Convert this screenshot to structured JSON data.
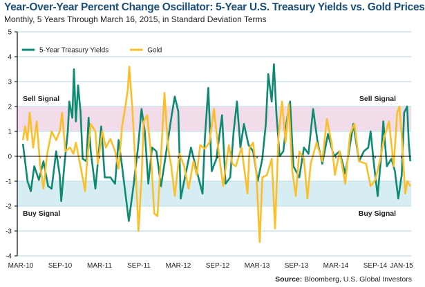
{
  "chart_data": {
    "type": "line",
    "title": "Year-Over-Year Percent Change Oscillator: 5-Year U.S. Treasury Yields vs. Gold Prices",
    "subtitle": "Monthly, 5 Years Through March 16, 2015, in Standard Deviation Terms",
    "ylim": [
      -4,
      5
    ],
    "y_ticks": [
      5,
      4,
      3,
      2,
      1,
      0,
      -1,
      -2,
      -3,
      -4
    ],
    "x_ticks": [
      {
        "label": "MAR-10",
        "date": "2010-03-01"
      },
      {
        "label": "SEP-10",
        "date": "2010-09-01"
      },
      {
        "label": "MAR-11",
        "date": "2011-03-01"
      },
      {
        "label": "SEP-11",
        "date": "2011-09-01"
      },
      {
        "label": "MAR-12",
        "date": "2012-03-01"
      },
      {
        "label": "SEP-12",
        "date": "2012-09-01"
      },
      {
        "label": "MAR-13",
        "date": "2013-03-01"
      },
      {
        "label": "SEP-13",
        "date": "2013-09-01"
      },
      {
        "label": "MAR-14",
        "date": "2014-03-01"
      },
      {
        "label": "SEP-14",
        "date": "2014-09-01"
      },
      {
        "label": "JAN-15",
        "date": "2015-01-01"
      }
    ],
    "grid": true,
    "legend_placement": "top-left",
    "bands": [
      {
        "label": "Sell Signal",
        "range": [
          1,
          2
        ],
        "color": "#f2dcea"
      },
      {
        "label": "Buy Signal",
        "range": [
          -2,
          -1
        ],
        "color": "#d6edf4"
      }
    ],
    "series": [
      {
        "name": "5-Year Treasury Yields",
        "color": "#0e8a72",
        "points": [
          [
            "2010-03-11",
            0.5
          ],
          [
            "2010-04-02",
            -1.0
          ],
          [
            "2010-04-17",
            -1.4
          ],
          [
            "2010-05-03",
            -0.4
          ],
          [
            "2010-05-24",
            -0.95
          ],
          [
            "2010-06-15",
            -0.2
          ],
          [
            "2010-07-06",
            -1.2
          ],
          [
            "2010-07-22",
            -1.3
          ],
          [
            "2010-08-13",
            0.2
          ],
          [
            "2010-08-29",
            -0.75
          ],
          [
            "2010-09-06",
            -1.8
          ],
          [
            "2010-09-20",
            -0.4
          ],
          [
            "2010-10-06",
            1.0
          ],
          [
            "2010-10-13",
            2.2
          ],
          [
            "2010-10-27",
            1.55
          ],
          [
            "2010-11-04",
            3.5
          ],
          [
            "2010-11-13",
            1.4
          ],
          [
            "2010-11-23",
            2.85
          ],
          [
            "2010-12-04",
            1.8
          ],
          [
            "2010-12-14",
            -0.1
          ],
          [
            "2011-01-01",
            -0.2
          ],
          [
            "2011-01-11",
            1.55
          ],
          [
            "2011-01-21",
            0.2
          ],
          [
            "2011-02-12",
            -1.3
          ],
          [
            "2011-02-28",
            0.2
          ],
          [
            "2011-03-09",
            1.2
          ],
          [
            "2011-03-25",
            -0.85
          ],
          [
            "2011-04-21",
            -0.85
          ],
          [
            "2011-05-12",
            -1.1
          ],
          [
            "2011-05-28",
            0.65
          ],
          [
            "2011-06-14",
            -0.4
          ],
          [
            "2011-07-05",
            -1.9
          ],
          [
            "2011-07-15",
            -2.6
          ],
          [
            "2011-08-06",
            -1.2
          ],
          [
            "2011-08-27",
            0.35
          ],
          [
            "2011-09-13",
            1.9
          ],
          [
            "2011-09-28",
            1.0
          ],
          [
            "2011-10-14",
            -1.1
          ],
          [
            "2011-11-01",
            0.35
          ],
          [
            "2011-11-21",
            0.2
          ],
          [
            "2011-12-12",
            -1.2
          ],
          [
            "2012-01-03",
            0
          ],
          [
            "2012-01-29",
            1.55
          ],
          [
            "2012-02-15",
            2.4
          ],
          [
            "2012-03-01",
            1.8
          ],
          [
            "2012-03-12",
            -1.7
          ],
          [
            "2012-03-28",
            -1.0
          ],
          [
            "2012-04-29",
            0.35
          ],
          [
            "2012-05-20",
            -0.4
          ],
          [
            "2012-06-22",
            -1.5
          ],
          [
            "2012-07-02",
            0.65
          ],
          [
            "2012-07-18",
            2.75
          ],
          [
            "2012-08-04",
            -0.6
          ],
          [
            "2012-08-25",
            -0.1
          ],
          [
            "2012-09-21",
            1.65
          ],
          [
            "2012-10-07",
            -1.1
          ],
          [
            "2012-10-28",
            -0.85
          ],
          [
            "2012-11-14",
            1.0
          ],
          [
            "2012-11-29",
            2.2
          ],
          [
            "2012-12-15",
            0.35
          ],
          [
            "2013-01-01",
            1.3
          ],
          [
            "2013-01-22",
            0.45
          ],
          [
            "2013-02-13",
            0.2
          ],
          [
            "2013-03-04",
            -1.0
          ],
          [
            "2013-03-25",
            -0.1
          ],
          [
            "2013-04-11",
            1.3
          ],
          [
            "2013-04-22",
            3.3
          ],
          [
            "2013-05-08",
            2.2
          ],
          [
            "2013-05-18",
            3.7
          ],
          [
            "2013-05-29",
            1.75
          ],
          [
            "2013-06-14",
            0
          ],
          [
            "2013-07-01",
            0.2
          ],
          [
            "2013-07-16",
            1.4
          ],
          [
            "2013-08-02",
            2.2
          ],
          [
            "2013-08-17",
            -0.4
          ],
          [
            "2013-09-14",
            -0.85
          ],
          [
            "2013-10-05",
            0.35
          ],
          [
            "2013-10-26",
            0.1
          ],
          [
            "2013-11-17",
            1.9
          ],
          [
            "2013-12-08",
            0.55
          ],
          [
            "2013-12-29",
            -0.3
          ],
          [
            "2014-01-25",
            0.9
          ],
          [
            "2014-02-22",
            0
          ],
          [
            "2014-03-18",
            0.2
          ],
          [
            "2014-04-14",
            -0.7
          ],
          [
            "2014-05-01",
            0.2
          ],
          [
            "2014-05-21",
            1.3
          ],
          [
            "2014-06-17",
            -0.2
          ],
          [
            "2014-07-09",
            0.2
          ],
          [
            "2014-07-29",
            0.35
          ],
          [
            "2014-08-10",
            1.0
          ],
          [
            "2014-08-26",
            -0.4
          ],
          [
            "2014-09-12",
            -1.6
          ],
          [
            "2014-09-27",
            -0.1
          ],
          [
            "2014-10-08",
            1.4
          ],
          [
            "2014-10-24",
            -0.4
          ],
          [
            "2014-11-15",
            -0.1
          ],
          [
            "2014-12-01",
            -0.6
          ],
          [
            "2014-12-16",
            -1.7
          ],
          [
            "2015-01-02",
            -0.75
          ],
          [
            "2015-01-13",
            1.75
          ],
          [
            "2015-01-27",
            2.0
          ],
          [
            "2015-02-04",
            0.55
          ],
          [
            "2015-02-11",
            -0.2
          ]
        ]
      },
      {
        "name": "Gold",
        "color": "#fbbf2a",
        "points": [
          [
            "2010-03-11",
            0.65
          ],
          [
            "2010-03-21",
            1.2
          ],
          [
            "2010-04-02",
            0.65
          ],
          [
            "2010-04-12",
            1.75
          ],
          [
            "2010-04-28",
            0.35
          ],
          [
            "2010-05-14",
            1.4
          ],
          [
            "2010-05-30",
            -0.4
          ],
          [
            "2010-06-15",
            -1.3
          ],
          [
            "2010-07-02",
            0.1
          ],
          [
            "2010-07-22",
            1.0
          ],
          [
            "2010-08-13",
            0.65
          ],
          [
            "2010-08-29",
            1.0
          ],
          [
            "2010-09-10",
            1.75
          ],
          [
            "2010-09-25",
            0.2
          ],
          [
            "2010-10-16",
            0.35
          ],
          [
            "2010-11-02",
            0.1
          ],
          [
            "2010-11-13",
            0.55
          ],
          [
            "2010-12-04",
            -0.4
          ],
          [
            "2010-12-25",
            -1.4
          ],
          [
            "2011-01-05",
            -0.1
          ],
          [
            "2011-01-21",
            1.3
          ],
          [
            "2011-02-12",
            1.0
          ],
          [
            "2011-02-23",
            -0.3
          ],
          [
            "2011-03-14",
            1.0
          ],
          [
            "2011-03-30",
            0.35
          ],
          [
            "2011-04-21",
            0.7
          ],
          [
            "2011-05-12",
            0.2
          ],
          [
            "2011-05-28",
            -0.5
          ],
          [
            "2011-06-14",
            1.2
          ],
          [
            "2011-06-29",
            2.0
          ],
          [
            "2011-07-10",
            2.65
          ],
          [
            "2011-07-17",
            3.6
          ],
          [
            "2011-08-01",
            1.9
          ],
          [
            "2011-08-11",
            0.35
          ],
          [
            "2011-08-22",
            -1.7
          ],
          [
            "2011-08-29",
            -3.0
          ],
          [
            "2011-09-13",
            -0.85
          ],
          [
            "2011-09-23",
            1.4
          ],
          [
            "2011-10-09",
            1.65
          ],
          [
            "2011-10-25",
            0.2
          ],
          [
            "2011-11-11",
            -2.3
          ],
          [
            "2011-11-26",
            -2.4
          ],
          [
            "2011-12-12",
            0
          ],
          [
            "2011-12-28",
            2.55
          ],
          [
            "2012-01-14",
            0.35
          ],
          [
            "2012-01-29",
            -0.4
          ],
          [
            "2012-02-15",
            -1.6
          ],
          [
            "2012-03-06",
            0.1
          ],
          [
            "2012-03-28",
            -0.4
          ],
          [
            "2012-04-18",
            -1.3
          ],
          [
            "2012-05-10",
            -0.2
          ],
          [
            "2012-05-25",
            -0.75
          ],
          [
            "2012-06-11",
            0.45
          ],
          [
            "2012-07-02",
            0.3
          ],
          [
            "2012-07-23",
            0.55
          ],
          [
            "2012-08-14",
            1.9
          ],
          [
            "2012-09-05",
            0.2
          ],
          [
            "2012-09-26",
            -1.2
          ],
          [
            "2012-10-22",
            0.45
          ],
          [
            "2012-11-08",
            -0.3
          ],
          [
            "2012-11-24",
            -0.4
          ],
          [
            "2012-12-20",
            0.35
          ],
          [
            "2013-01-17",
            -1.5
          ],
          [
            "2013-01-27",
            0.35
          ],
          [
            "2013-02-13",
            0.55
          ],
          [
            "2013-02-28",
            -0.75
          ],
          [
            "2013-03-13",
            -3.45
          ],
          [
            "2013-03-25",
            -0.85
          ],
          [
            "2013-04-16",
            -0.75
          ],
          [
            "2013-05-08",
            -0.1
          ],
          [
            "2013-05-23",
            -2.9
          ],
          [
            "2013-06-09",
            0.8
          ],
          [
            "2013-06-25",
            2.2
          ],
          [
            "2013-07-11",
            0.55
          ],
          [
            "2013-07-26",
            2.1
          ],
          [
            "2013-08-12",
            -0.6
          ],
          [
            "2013-08-28",
            -1.6
          ],
          [
            "2013-09-14",
            0.2
          ],
          [
            "2013-10-05",
            -0.1
          ],
          [
            "2013-10-21",
            -1.7
          ],
          [
            "2013-11-06",
            -0.3
          ],
          [
            "2013-12-03",
            0.55
          ],
          [
            "2013-12-29",
            -0.2
          ],
          [
            "2014-01-20",
            1.5
          ],
          [
            "2014-02-11",
            0.55
          ],
          [
            "2014-02-27",
            -0.75
          ],
          [
            "2014-03-18",
            0.2
          ],
          [
            "2014-04-14",
            -1.1
          ],
          [
            "2014-05-06",
            0.9
          ],
          [
            "2014-05-26",
            1.3
          ],
          [
            "2014-06-17",
            -0.2
          ],
          [
            "2014-07-19",
            -0.3
          ],
          [
            "2014-08-10",
            -1.2
          ],
          [
            "2014-09-01",
            -0.95
          ],
          [
            "2014-09-22",
            -0.2
          ],
          [
            "2014-10-13",
            0.8
          ],
          [
            "2014-11-04",
            1.4
          ],
          [
            "2014-11-25",
            -0.4
          ],
          [
            "2014-12-11",
            1.75
          ],
          [
            "2014-12-22",
            2.0
          ],
          [
            "2015-01-02",
            0.8
          ],
          [
            "2015-01-18",
            -1.5
          ],
          [
            "2015-01-28",
            -1.0
          ],
          [
            "2015-02-11",
            -1.2
          ]
        ]
      }
    ],
    "source_label": "Source:",
    "source_text": "Bloomberg, U.S. Global Investors"
  }
}
